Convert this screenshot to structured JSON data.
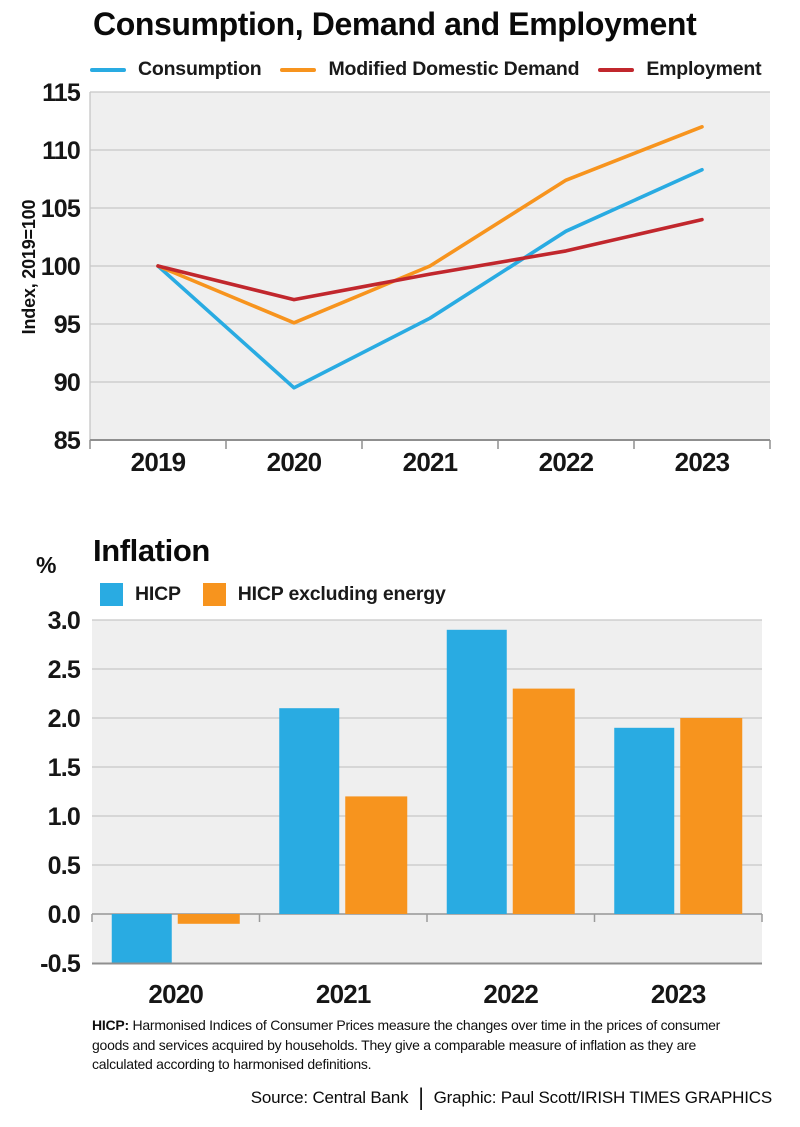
{
  "page": {
    "background": "#ffffff"
  },
  "chart_data": [
    {
      "type": "line",
      "title": "Consumption, Demand and Employment",
      "ylabel": "Index, 2019=100",
      "x": [
        "2019",
        "2020",
        "2021",
        "2022",
        "2023"
      ],
      "series": [
        {
          "name": "Consumption",
          "color": "#29ABE2",
          "values": [
            100,
            89.5,
            95.5,
            103,
            108.3
          ]
        },
        {
          "name": "Modified Domestic Demand",
          "color": "#F7941E",
          "values": [
            100,
            95.1,
            100,
            107.4,
            112
          ]
        },
        {
          "name": "Employment",
          "color": "#C1272D",
          "values": [
            100,
            97.1,
            99.3,
            101.3,
            104
          ]
        }
      ],
      "ylim": [
        85,
        115
      ],
      "yticks": [
        85,
        90,
        95,
        100,
        105,
        110,
        115
      ],
      "grid": true,
      "legend_position": "top",
      "plot_background": "#efefef"
    },
    {
      "type": "bar",
      "title": "Inflation",
      "ylabel": "%",
      "categories": [
        "2020",
        "2021",
        "2022",
        "2023"
      ],
      "series": [
        {
          "name": "HICP",
          "color": "#29ABE2",
          "values": [
            -0.5,
            2.1,
            2.9,
            1.9
          ]
        },
        {
          "name": "HICP excluding energy",
          "color": "#F7941E",
          "values": [
            -0.1,
            1.2,
            2.3,
            2.0
          ]
        }
      ],
      "ylim": [
        -0.5,
        3.0
      ],
      "yticks": [
        -0.5,
        0.0,
        0.5,
        1.0,
        1.5,
        2.0,
        2.5,
        3.0
      ],
      "grid": true,
      "legend_position": "top",
      "plot_background": "#efefef"
    }
  ],
  "footer": {
    "note_label": "HICP:",
    "note_lines": [
      " Harmonised Indices of Consumer Prices measure the changes over time in the prices of consumer",
      "goods and services acquired by households. They give a comparable measure of inflation as they are",
      "calculated according to harmonised definitions."
    ],
    "source": "Source: Central Bank",
    "separator": "|",
    "credit": "Graphic: Paul Scott/IRISH TIMES GRAPHICS"
  }
}
